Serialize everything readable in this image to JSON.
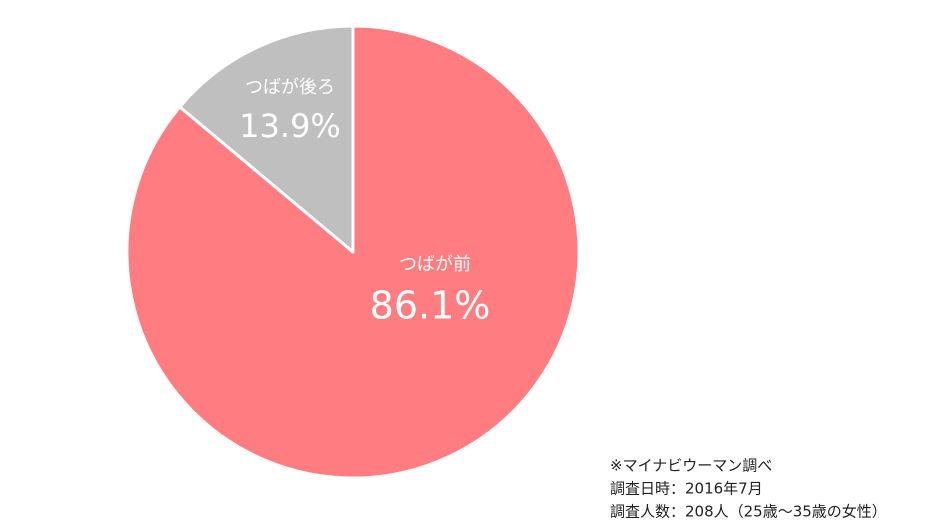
{
  "chart_data": {
    "type": "pie",
    "categories": [
      "つばが前",
      "つばが後ろ"
    ],
    "values": [
      86.1,
      13.9
    ],
    "value_labels": [
      "86.1%",
      "13.9%"
    ],
    "colors": [
      "#ff7c80",
      "#bfbfbf"
    ],
    "note": [
      "※マイナビウーマン調べ",
      "調査日時：2016年7月",
      "調査人数：208人（25歳～35歳の女性）"
    ]
  }
}
